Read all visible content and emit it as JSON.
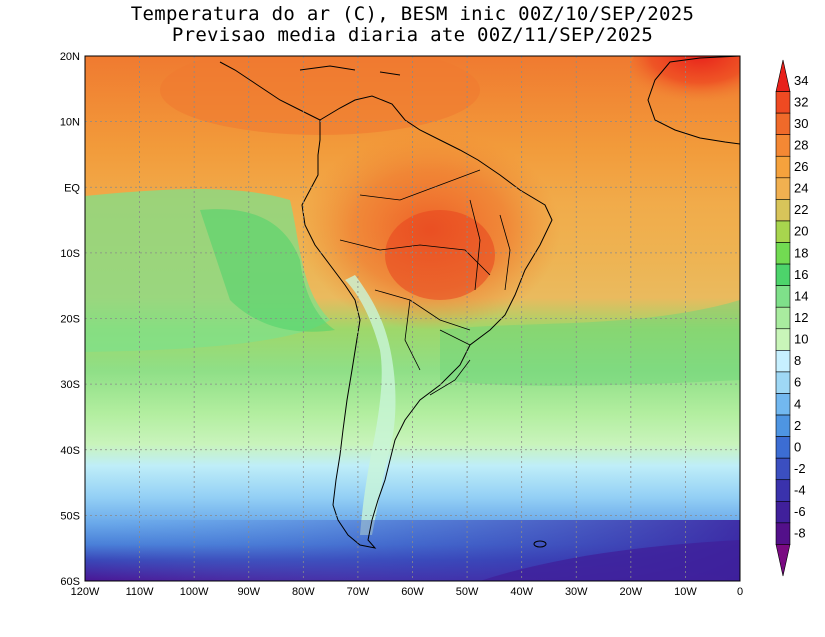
{
  "title": {
    "line1": "Temperatura do ar (C), BESM inic 00Z/10/SEP/2025",
    "line2": "Previsao media diaria ate 00Z/11/SEP/2025"
  },
  "map": {
    "lon_range": [
      -120,
      0
    ],
    "lat_range": [
      -60,
      20
    ],
    "lon_ticks": [
      "120W",
      "110W",
      "100W",
      "90W",
      "80W",
      "70W",
      "60W",
      "50W",
      "40W",
      "30W",
      "20W",
      "10W",
      "0"
    ],
    "lat_ticks": [
      "20N",
      "10N",
      "EQ",
      "10S",
      "20S",
      "30S",
      "40S",
      "50S",
      "60S"
    ],
    "grid": "dotted"
  },
  "colorbar": {
    "labels": [
      "34",
      "32",
      "30",
      "28",
      "26",
      "24",
      "22",
      "20",
      "18",
      "16",
      "14",
      "12",
      "10",
      "8",
      "6",
      "4",
      "2",
      "0",
      "-2",
      "-4",
      "-6",
      "-8"
    ],
    "colors": [
      "#e8211b",
      "#ef4a22",
      "#f06a2a",
      "#f48834",
      "#f5a23d",
      "#f1b050",
      "#d8c45a",
      "#a8d54e",
      "#72db52",
      "#4dd46b",
      "#7fe08a",
      "#a9ec9f",
      "#c9f5b9",
      "#c7f0ff",
      "#9fd8f5",
      "#72b8f0",
      "#4e95e2",
      "#3c6dd3",
      "#3b4fc0",
      "#3a32ac",
      "#40209b",
      "#53108a",
      "#7a0a82"
    ]
  }
}
